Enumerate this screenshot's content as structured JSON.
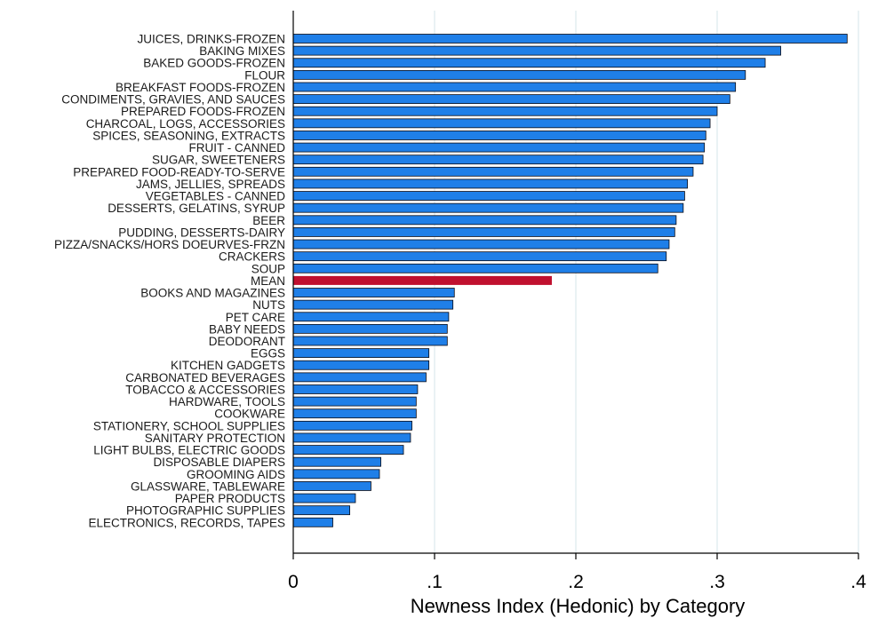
{
  "chart_data": {
    "type": "bar",
    "orientation": "horizontal",
    "title": "",
    "xlabel": "Newness Index (Hedonic) by Category",
    "ylabel": "",
    "xlim": [
      0,
      0.4
    ],
    "xticks": [
      0,
      0.1,
      0.2,
      0.3,
      0.4
    ],
    "xtick_labels": [
      "0",
      ".1",
      ".2",
      ".3",
      ".4"
    ],
    "grid": "vertical",
    "legend": "none",
    "colors": {
      "bar": "#1f7fe8",
      "highlight": "#c0102f",
      "grid": "#dde8ec",
      "bar_edge": "#0a0a14"
    },
    "highlight_category": "MEAN",
    "categories": [
      "JUICES, DRINKS-FROZEN",
      "BAKING MIXES",
      "BAKED GOODS-FROZEN",
      "FLOUR",
      "BREAKFAST FOODS-FROZEN",
      "CONDIMENTS, GRAVIES, AND SAUCES",
      "PREPARED FOODS-FROZEN",
      "CHARCOAL, LOGS, ACCESSORIES",
      "SPICES, SEASONING, EXTRACTS",
      "FRUIT - CANNED",
      "SUGAR, SWEETENERS",
      "PREPARED FOOD-READY-TO-SERVE",
      "JAMS, JELLIES, SPREADS",
      "VEGETABLES - CANNED",
      "DESSERTS, GELATINS, SYRUP",
      "BEER",
      "PUDDING, DESSERTS-DAIRY",
      "PIZZA/SNACKS/HORS DOEURVES-FRZN",
      "CRACKERS",
      "SOUP",
      "MEAN",
      "BOOKS AND MAGAZINES",
      "NUTS",
      "PET CARE",
      "BABY NEEDS",
      "DEODORANT",
      "EGGS",
      "KITCHEN GADGETS",
      "CARBONATED BEVERAGES",
      "TOBACCO & ACCESSORIES",
      "HARDWARE, TOOLS",
      "COOKWARE",
      "STATIONERY, SCHOOL SUPPLIES",
      "SANITARY PROTECTION",
      "LIGHT BULBS, ELECTRIC GOODS",
      "DISPOSABLE DIAPERS",
      "GROOMING AIDS",
      "GLASSWARE, TABLEWARE",
      "PAPER PRODUCTS",
      "PHOTOGRAPHIC SUPPLIES",
      "ELECTRONICS, RECORDS, TAPES"
    ],
    "values": [
      0.392,
      0.345,
      0.334,
      0.32,
      0.313,
      0.309,
      0.3,
      0.295,
      0.292,
      0.291,
      0.29,
      0.283,
      0.279,
      0.277,
      0.276,
      0.271,
      0.27,
      0.266,
      0.264,
      0.258,
      0.183,
      0.114,
      0.113,
      0.11,
      0.109,
      0.109,
      0.096,
      0.096,
      0.094,
      0.088,
      0.087,
      0.087,
      0.084,
      0.083,
      0.078,
      0.062,
      0.061,
      0.055,
      0.044,
      0.04,
      0.028
    ]
  }
}
